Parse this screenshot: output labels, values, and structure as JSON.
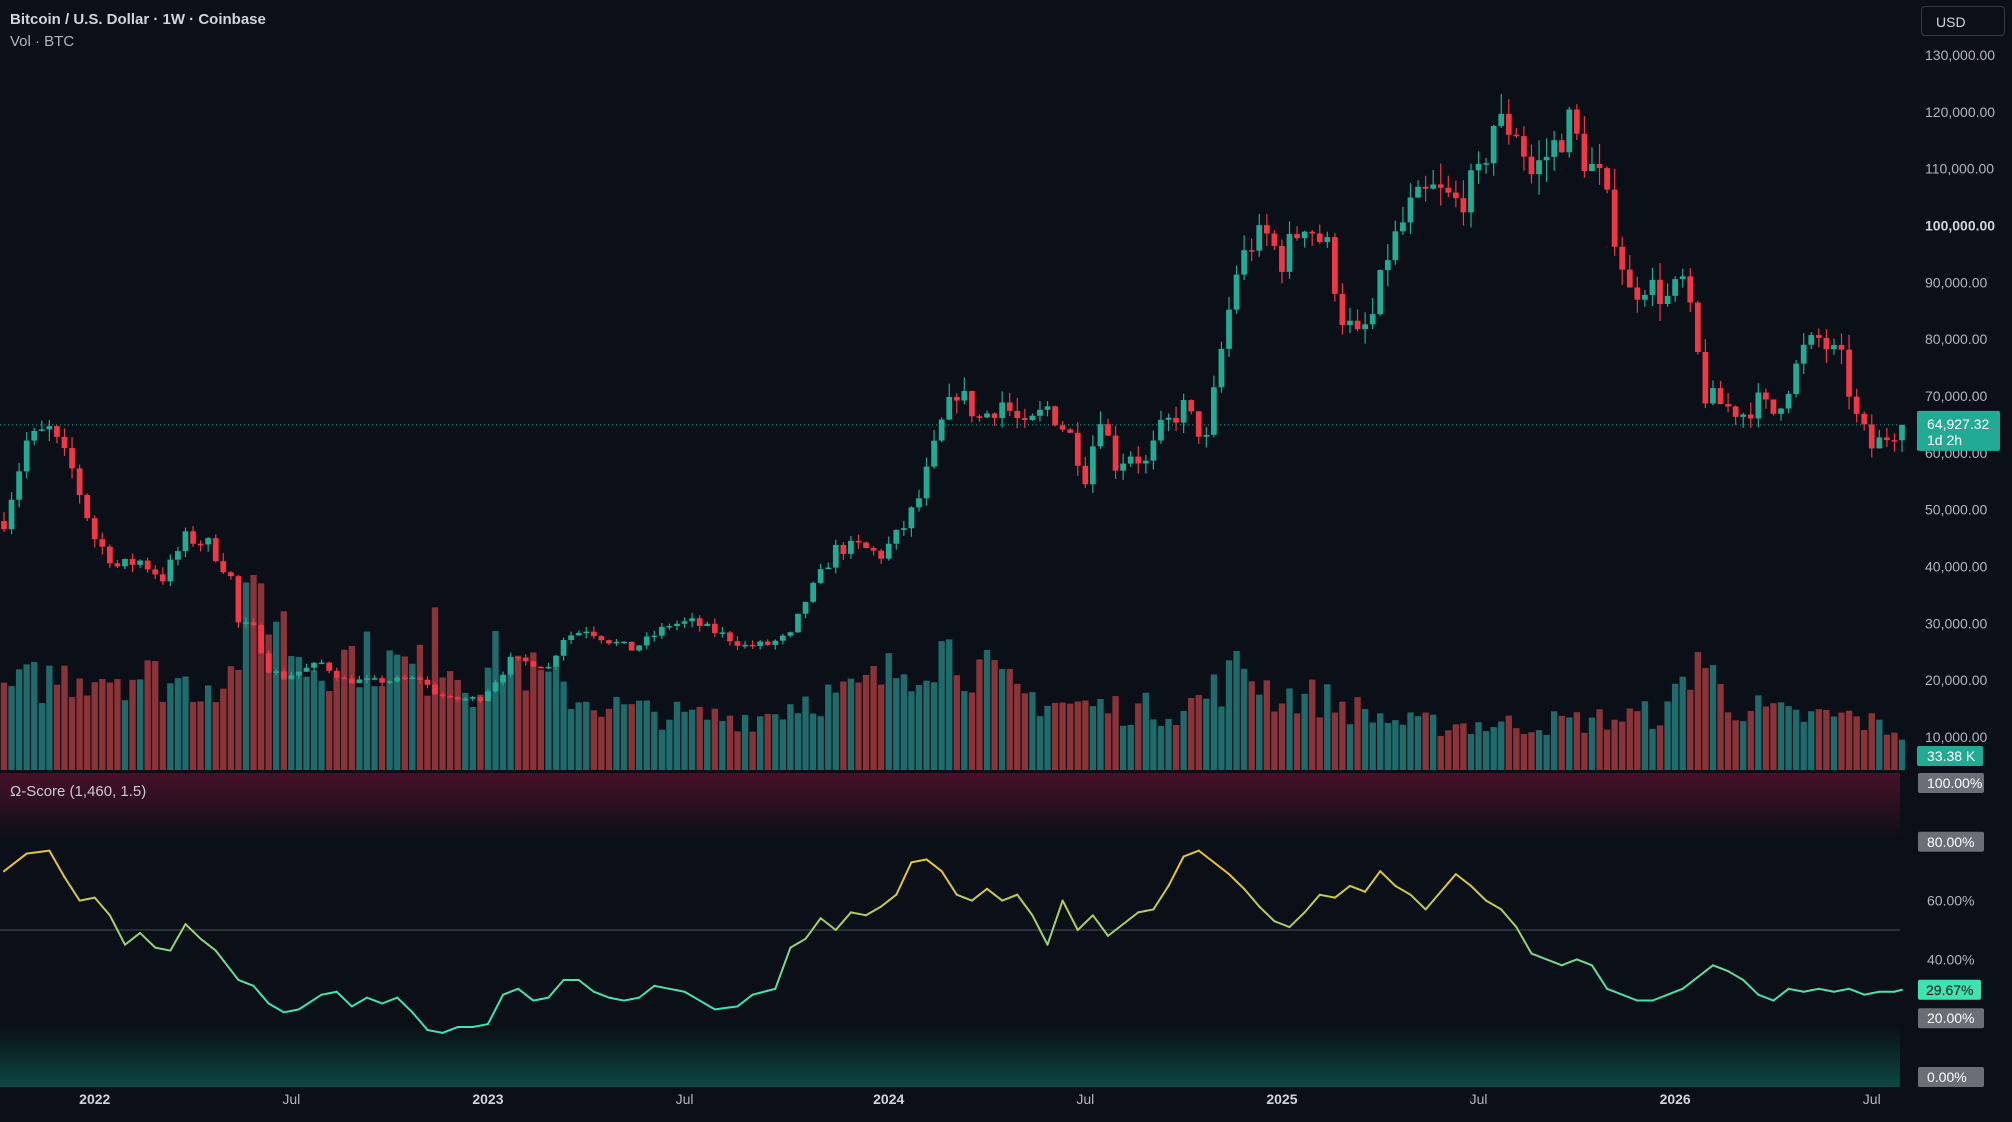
{
  "header": {
    "title": "Bitcoin / U.S. Dollar · 1W · Coinbase",
    "subtitle": "Vol · BTC"
  },
  "currency_button": "USD",
  "indicator": {
    "title": "Ω-Score (1,460, 1.5)"
  },
  "price_badge": {
    "value": "64,927.32",
    "countdown": "1d 2h"
  },
  "volume_badge": "33.38 K",
  "score_badge": "29.67%",
  "colors": {
    "background": "#0b0f17",
    "up": "#22ab94",
    "down": "#f23645",
    "volume_up": "#1f6b6b",
    "volume_down": "#8a3338",
    "score_high": "#e8c23b",
    "score_low": "#3ee3b0",
    "top_zone": "#4a1028",
    "bottom_zone": "#0c4a44"
  },
  "chart_data": [
    {
      "type": "candlestick",
      "title": "Bitcoin / U.S. Dollar · 1W · Coinbase",
      "y_ticks": [
        "130,000.00",
        "120,000.00",
        "110,000.00",
        "100,000.00",
        "90,000.00",
        "80,000.00",
        "70,000.00",
        "60,000.00",
        "50,000.00",
        "40,000.00",
        "30,000.00",
        "20,000.00",
        "10,000.00"
      ],
      "y_tick_values": [
        130000,
        120000,
        110000,
        100000,
        90000,
        80000,
        70000,
        60000,
        50000,
        40000,
        30000,
        20000,
        10000
      ],
      "bold_tick": "100,000.00",
      "ylim": [
        0,
        132000
      ],
      "x_ticks": [
        "2022",
        "Jul",
        "2023",
        "Jul",
        "2024",
        "Jul",
        "2025",
        "Jul",
        "2026",
        "Jul"
      ],
      "x_tick_weeks": [
        12,
        38,
        64,
        90,
        117,
        143,
        169,
        195,
        221,
        247
      ],
      "week_count": 252,
      "anchors": [
        [
          0,
          48000
        ],
        [
          3,
          62000
        ],
        [
          6,
          64000
        ],
        [
          9,
          57000
        ],
        [
          12,
          45000
        ],
        [
          15,
          40000
        ],
        [
          18,
          41000
        ],
        [
          21,
          38000
        ],
        [
          24,
          45000
        ],
        [
          27,
          44000
        ],
        [
          30,
          38000
        ],
        [
          31,
          30000
        ],
        [
          33,
          29000
        ],
        [
          35,
          22000
        ],
        [
          37,
          20500
        ],
        [
          39,
          21500
        ],
        [
          42,
          23000
        ],
        [
          45,
          20000
        ],
        [
          49,
          19800
        ],
        [
          52,
          20000
        ],
        [
          55,
          20300
        ],
        [
          57,
          17800
        ],
        [
          59,
          16600
        ],
        [
          63,
          16800
        ],
        [
          66,
          21500
        ],
        [
          67,
          23500
        ],
        [
          70,
          23000
        ],
        [
          72,
          22200
        ],
        [
          74,
          27500
        ],
        [
          77,
          29000
        ],
        [
          80,
          27000
        ],
        [
          83,
          25500
        ],
        [
          85,
          27000
        ],
        [
          88,
          29800
        ],
        [
          91,
          30200
        ],
        [
          95,
          28000
        ],
        [
          98,
          26000
        ],
        [
          101,
          26300
        ],
        [
          104,
          27800
        ],
        [
          106,
          34000
        ],
        [
          110,
          43000
        ],
        [
          113,
          43500
        ],
        [
          116,
          42000
        ],
        [
          119,
          47000
        ],
        [
          121,
          52000
        ],
        [
          124,
          65000
        ],
        [
          126,
          71000
        ],
        [
          129,
          66000
        ],
        [
          132,
          69000
        ],
        [
          135,
          64000
        ],
        [
          138,
          68000
        ],
        [
          141,
          63000
        ],
        [
          143,
          56000
        ],
        [
          145,
          67000
        ],
        [
          147,
          58000
        ],
        [
          149,
          60000
        ],
        [
          151,
          58000
        ],
        [
          153,
          64000
        ],
        [
          156,
          68000
        ],
        [
          159,
          62000
        ],
        [
          161,
          78000
        ],
        [
          163,
          92000
        ],
        [
          165,
          97000
        ],
        [
          167,
          98000
        ],
        [
          169,
          94000
        ],
        [
          172,
          101000
        ],
        [
          175,
          96000
        ],
        [
          177,
          84000
        ],
        [
          179,
          80000
        ],
        [
          181,
          84000
        ],
        [
          183,
          95000
        ],
        [
          186,
          103000
        ],
        [
          189,
          106000
        ],
        [
          192,
          104000
        ],
        [
          195,
          108000
        ],
        [
          197,
          118000
        ],
        [
          200,
          117000
        ],
        [
          202,
          109000
        ],
        [
          205,
          114000
        ],
        [
          207,
          118000
        ],
        [
          209,
          112000
        ],
        [
          211,
          108000
        ],
        [
          213,
          99000
        ],
        [
          215,
          88000
        ],
        [
          217,
          90000
        ],
        [
          220,
          87000
        ],
        [
          222,
          90000
        ],
        [
          223,
          84000
        ],
        [
          225,
          70000
        ],
        [
          228,
          68000
        ],
        [
          230,
          67000
        ],
        [
          232,
          69000
        ],
        [
          234,
          67000
        ],
        [
          236,
          72000
        ],
        [
          238,
          78000
        ],
        [
          240,
          80000
        ],
        [
          243,
          76000
        ],
        [
          245,
          66000
        ],
        [
          247,
          61000
        ],
        [
          249,
          63000
        ],
        [
          251,
          65000
        ]
      ],
      "last_price": 64927.32
    },
    {
      "type": "bar",
      "title": "Vol · BTC",
      "last_value": "33.38 K",
      "anchors": [
        [
          0,
          0.42
        ],
        [
          6,
          0.48
        ],
        [
          12,
          0.52
        ],
        [
          18,
          0.5
        ],
        [
          25,
          0.45
        ],
        [
          30,
          0.5
        ],
        [
          32,
          0.78
        ],
        [
          34,
          0.95
        ],
        [
          40,
          0.55
        ],
        [
          46,
          0.6
        ],
        [
          52,
          0.55
        ],
        [
          56,
          0.52
        ],
        [
          57,
          1.0
        ],
        [
          58,
          0.6
        ],
        [
          62,
          0.45
        ],
        [
          66,
          0.62
        ],
        [
          70,
          0.5
        ],
        [
          76,
          0.38
        ],
        [
          82,
          0.32
        ],
        [
          90,
          0.28
        ],
        [
          100,
          0.28
        ],
        [
          106,
          0.38
        ],
        [
          112,
          0.4
        ],
        [
          118,
          0.52
        ],
        [
          124,
          0.65
        ],
        [
          128,
          0.55
        ],
        [
          134,
          0.4
        ],
        [
          140,
          0.35
        ],
        [
          148,
          0.32
        ],
        [
          156,
          0.32
        ],
        [
          160,
          0.42
        ],
        [
          164,
          0.55
        ],
        [
          168,
          0.4
        ],
        [
          174,
          0.38
        ],
        [
          180,
          0.3
        ],
        [
          186,
          0.24
        ],
        [
          192,
          0.24
        ],
        [
          200,
          0.24
        ],
        [
          210,
          0.26
        ],
        [
          220,
          0.3
        ],
        [
          224,
          0.62
        ],
        [
          228,
          0.35
        ],
        [
          236,
          0.28
        ],
        [
          244,
          0.28
        ],
        [
          251,
          0.2
        ]
      ]
    },
    {
      "type": "line",
      "title": "Ω-Score (1,460, 1.5)",
      "y_ticks": [
        "100.00%",
        "80.00%",
        "60.00%",
        "40.00%",
        "20.00%",
        "0.00%"
      ],
      "y_tick_values": [
        100,
        80,
        60,
        40,
        20,
        0
      ],
      "boxed_ticks": [
        "100.00%",
        "80.00%",
        "20.00%",
        "0.00%"
      ],
      "midline": 50,
      "ylim": [
        0,
        100
      ],
      "last_value": "29.67%",
      "anchors": [
        [
          0,
          70
        ],
        [
          3,
          76
        ],
        [
          6,
          77
        ],
        [
          8,
          68
        ],
        [
          10,
          60
        ],
        [
          12,
          61
        ],
        [
          14,
          55
        ],
        [
          16,
          45
        ],
        [
          18,
          49
        ],
        [
          20,
          44
        ],
        [
          22,
          43
        ],
        [
          24,
          52
        ],
        [
          26,
          47
        ],
        [
          28,
          43
        ],
        [
          31,
          33
        ],
        [
          33,
          31
        ],
        [
          35,
          25
        ],
        [
          37,
          22
        ],
        [
          39,
          23
        ],
        [
          42,
          28
        ],
        [
          44,
          29
        ],
        [
          46,
          24
        ],
        [
          48,
          27
        ],
        [
          50,
          25
        ],
        [
          52,
          27
        ],
        [
          54,
          22
        ],
        [
          56,
          16
        ],
        [
          58,
          15
        ],
        [
          60,
          17
        ],
        [
          62,
          17
        ],
        [
          64,
          18
        ],
        [
          66,
          28
        ],
        [
          68,
          30
        ],
        [
          70,
          26
        ],
        [
          72,
          27
        ],
        [
          74,
          33
        ],
        [
          76,
          33
        ],
        [
          78,
          29
        ],
        [
          80,
          27
        ],
        [
          82,
          26
        ],
        [
          84,
          27
        ],
        [
          86,
          31
        ],
        [
          88,
          30
        ],
        [
          90,
          29
        ],
        [
          92,
          26
        ],
        [
          94,
          23
        ],
        [
          97,
          24
        ],
        [
          99,
          28
        ],
        [
          102,
          30
        ],
        [
          104,
          44
        ],
        [
          106,
          47
        ],
        [
          108,
          54
        ],
        [
          110,
          50
        ],
        [
          112,
          56
        ],
        [
          114,
          55
        ],
        [
          116,
          58
        ],
        [
          118,
          62
        ],
        [
          120,
          73
        ],
        [
          122,
          74
        ],
        [
          124,
          70
        ],
        [
          126,
          62
        ],
        [
          128,
          60
        ],
        [
          130,
          64
        ],
        [
          132,
          60
        ],
        [
          134,
          62
        ],
        [
          136,
          55
        ],
        [
          138,
          45
        ],
        [
          140,
          60
        ],
        [
          142,
          50
        ],
        [
          144,
          55
        ],
        [
          146,
          48
        ],
        [
          148,
          52
        ],
        [
          150,
          56
        ],
        [
          152,
          57
        ],
        [
          154,
          65
        ],
        [
          156,
          75
        ],
        [
          158,
          77
        ],
        [
          160,
          73
        ],
        [
          162,
          69
        ],
        [
          164,
          64
        ],
        [
          166,
          58
        ],
        [
          168,
          53
        ],
        [
          170,
          51
        ],
        [
          172,
          56
        ],
        [
          174,
          62
        ],
        [
          176,
          61
        ],
        [
          178,
          65
        ],
        [
          180,
          63
        ],
        [
          182,
          70
        ],
        [
          184,
          65
        ],
        [
          186,
          62
        ],
        [
          188,
          57
        ],
        [
          190,
          63
        ],
        [
          192,
          69
        ],
        [
          194,
          65
        ],
        [
          196,
          60
        ],
        [
          198,
          57
        ],
        [
          200,
          51
        ],
        [
          202,
          42
        ],
        [
          204,
          40
        ],
        [
          206,
          38
        ],
        [
          208,
          40
        ],
        [
          210,
          38
        ],
        [
          212,
          30
        ],
        [
          214,
          28
        ],
        [
          216,
          26
        ],
        [
          218,
          26
        ],
        [
          220,
          28
        ],
        [
          222,
          30
        ],
        [
          224,
          34
        ],
        [
          226,
          38
        ],
        [
          228,
          36
        ],
        [
          230,
          33
        ],
        [
          232,
          28
        ],
        [
          234,
          26
        ],
        [
          236,
          30
        ],
        [
          238,
          29
        ],
        [
          240,
          30
        ],
        [
          242,
          29
        ],
        [
          244,
          30
        ],
        [
          246,
          28
        ],
        [
          248,
          29
        ],
        [
          250,
          29
        ],
        [
          251,
          29.67
        ]
      ]
    }
  ]
}
